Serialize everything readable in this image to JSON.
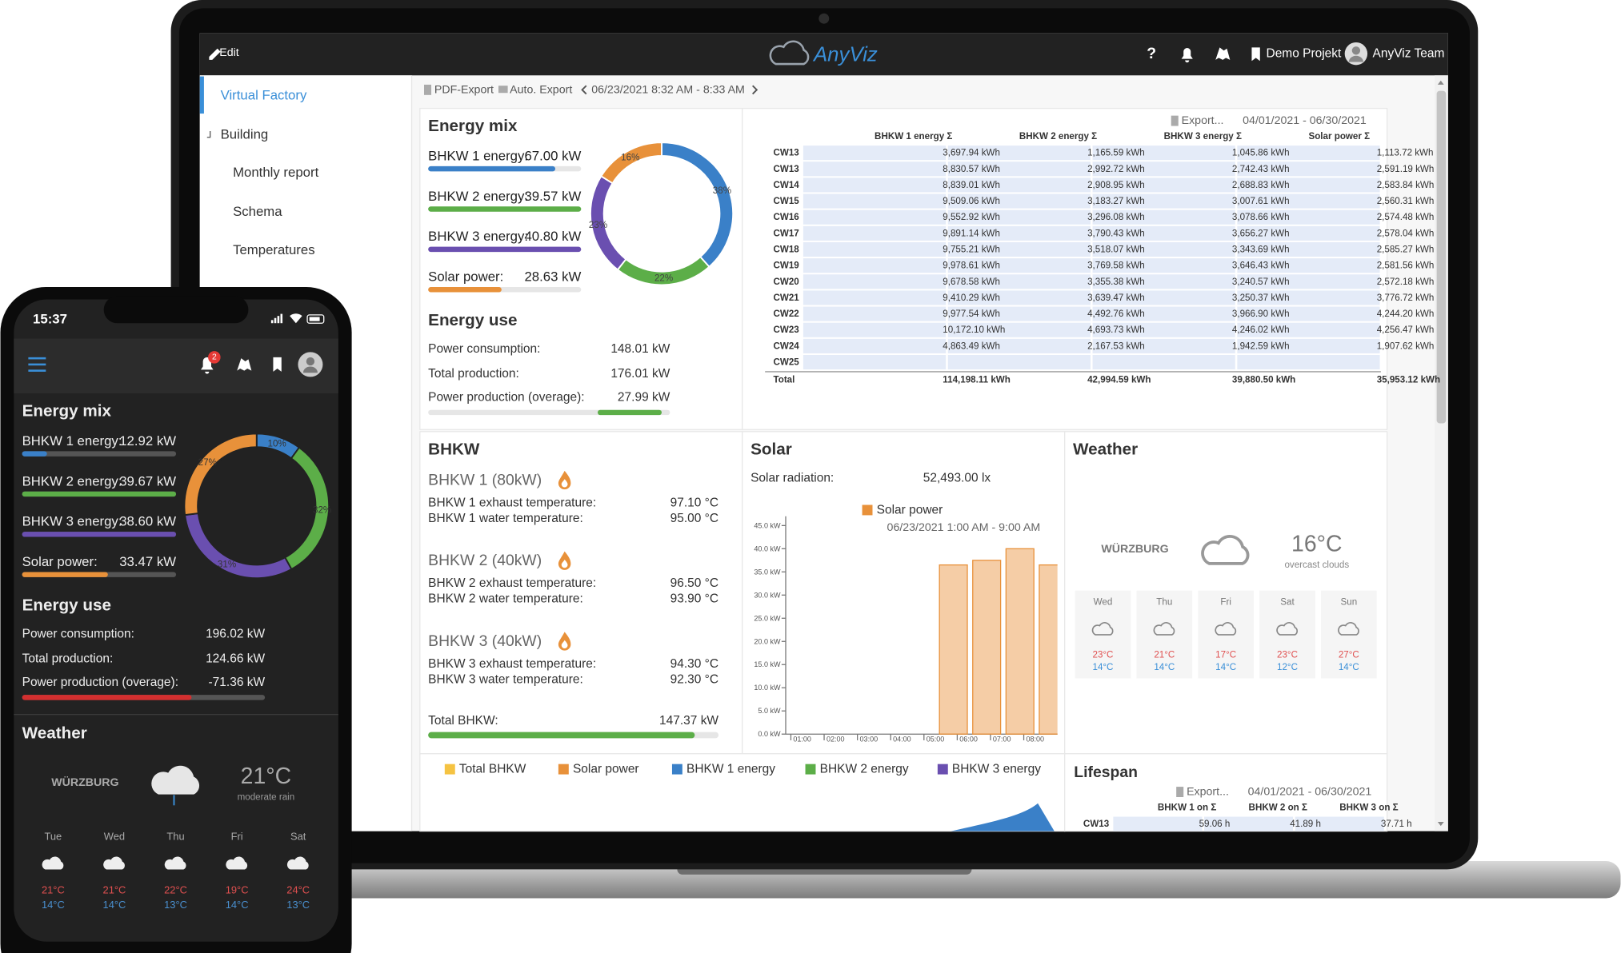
{
  "laptop": {
    "header": {
      "edit": "Edit",
      "logo": "AnyViz",
      "help": "?",
      "project": "Demo Projekt",
      "user": "AnyViz Team"
    },
    "sidebar": [
      "Virtual Factory",
      "Building",
      "Monthly report",
      "Schema",
      "Temperatures"
    ],
    "toolbar": {
      "pdf_export": "PDF-Export",
      "auto_export": "Auto. Export",
      "range": "06/23/2021 8:32 AM - 8:33 AM"
    },
    "energy_mix": {
      "title": "Energy mix",
      "items": [
        {
          "label": "BHKW 1 energy:",
          "value": "67.00 kW"
        },
        {
          "label": "BHKW 2 energy:",
          "value": "39.57 kW"
        },
        {
          "label": "BHKW 3 energy:",
          "value": "40.80 kW"
        },
        {
          "label": "Solar power:",
          "value": "28.63 kW"
        }
      ],
      "donut": {
        "type": "pie",
        "values": [
          38,
          22,
          23,
          16
        ],
        "value_labels": [
          "38%",
          "22%",
          "23%",
          "16%"
        ],
        "colors": [
          "#3a80c8",
          "#5cae48",
          "#6a4fb0",
          "#e8913a"
        ]
      }
    },
    "energy_use": {
      "title": "Energy use",
      "rows": [
        {
          "label": "Power consumption:",
          "value": "148.01 kW"
        },
        {
          "label": "Total production:",
          "value": "176.01 kW"
        },
        {
          "label": "Power production (overage):",
          "value": "27.99 kW"
        }
      ]
    },
    "table": {
      "export": "Export...",
      "range": "04/01/2021 - 06/30/2021",
      "columns": [
        "BHKW 1 energy Σ",
        "BHKW 2 energy Σ",
        "BHKW 3 energy Σ",
        "Solar power Σ"
      ],
      "rows": [
        {
          "label": "CW13",
          "cells": [
            "3,697.94 kWh",
            "1,165.59 kWh",
            "1,045.86 kWh",
            "1,113.72 kWh"
          ]
        },
        {
          "label": "CW13",
          "cells": [
            "8,830.57 kWh",
            "2,992.72 kWh",
            "2,742.43 kWh",
            "2,591.19 kWh"
          ]
        },
        {
          "label": "CW14",
          "cells": [
            "8,839.01 kWh",
            "2,908.95 kWh",
            "2,688.83 kWh",
            "2,583.84 kWh"
          ]
        },
        {
          "label": "CW15",
          "cells": [
            "9,509.06 kWh",
            "3,183.27 kWh",
            "3,007.61 kWh",
            "2,560.31 kWh"
          ]
        },
        {
          "label": "CW16",
          "cells": [
            "9,552.92 kWh",
            "3,296.08 kWh",
            "3,078.66 kWh",
            "2,574.48 kWh"
          ]
        },
        {
          "label": "CW17",
          "cells": [
            "9,891.14 kWh",
            "3,790.43 kWh",
            "3,656.27 kWh",
            "2,578.04 kWh"
          ]
        },
        {
          "label": "CW18",
          "cells": [
            "9,755.21 kWh",
            "3,518.07 kWh",
            "3,343.69 kWh",
            "2,585.27 kWh"
          ]
        },
        {
          "label": "CW19",
          "cells": [
            "9,978.61 kWh",
            "3,769.58 kWh",
            "3,646.43 kWh",
            "2,581.56 kWh"
          ]
        },
        {
          "label": "CW20",
          "cells": [
            "9,678.58 kWh",
            "3,355.38 kWh",
            "3,240.57 kWh",
            "2,572.18 kWh"
          ]
        },
        {
          "label": "CW21",
          "cells": [
            "9,410.29 kWh",
            "3,639.47 kWh",
            "3,250.37 kWh",
            "3,776.72 kWh"
          ]
        },
        {
          "label": "CW22",
          "cells": [
            "9,977.54 kWh",
            "4,492.76 kWh",
            "3,966.90 kWh",
            "4,244.20 kWh"
          ]
        },
        {
          "label": "CW23",
          "cells": [
            "10,172.10 kWh",
            "4,693.73 kWh",
            "4,246.02 kWh",
            "4,256.47 kWh"
          ]
        },
        {
          "label": "CW24",
          "cells": [
            "4,863.49 kWh",
            "2,167.53 kWh",
            "1,942.59 kWh",
            "1,907.62 kWh"
          ]
        },
        {
          "label": "CW25",
          "cells": []
        }
      ],
      "total": {
        "label": "Total",
        "cells": [
          "114,198.11 kWh",
          "42,994.59 kWh",
          "39,880.50 kWh",
          "35,953.12 kWh"
        ]
      }
    },
    "bhkw": {
      "title": "BHKW",
      "units": [
        {
          "name": "BHKW 1 (80kW)",
          "rows": [
            {
              "label": "BHKW 1 exhaust temperature:",
              "value": "97.10 °C"
            },
            {
              "label": "BHKW 1 water temperature:",
              "value": "95.00 °C"
            }
          ]
        },
        {
          "name": "BHKW 2 (40kW)",
          "rows": [
            {
              "label": "BHKW 2 exhaust temperature:",
              "value": "96.50 °C"
            },
            {
              "label": "BHKW 2 water temperature:",
              "value": "93.90 °C"
            }
          ]
        },
        {
          "name": "BHKW 3 (40kW)",
          "rows": [
            {
              "label": "BHKW 3 exhaust temperature:",
              "value": "94.30 °C"
            },
            {
              "label": "BHKW 3 water temperature:",
              "value": "92.30 °C"
            }
          ]
        }
      ],
      "total": {
        "label": "Total BHKW:",
        "value": "147.37 kW"
      }
    },
    "solar": {
      "title": "Solar",
      "radiation": {
        "label": "Solar radiation:",
        "value": "52,493.00 lx"
      },
      "chart": {
        "type": "bar",
        "subtitle": "06/23/2021 1:00 AM - 9:00 AM",
        "categories": [
          "01:00",
          "02:00",
          "03:00",
          "04:00",
          "05:00",
          "06:00",
          "07:00",
          "08:00"
        ],
        "series": [
          {
            "name": "Solar power",
            "color": "#e8913a",
            "values": [
              null,
              null,
              null,
              null,
              36.5,
              37.5,
              40,
              36.5
            ]
          }
        ],
        "ylim": [
          0,
          45
        ],
        "yticks": [
          {
            "value": 0,
            "label": "0.0 kW"
          },
          {
            "value": 5,
            "label": "5.0 kW"
          },
          {
            "value": 10,
            "label": "10.0 kW"
          },
          {
            "value": 15,
            "label": "15.0 kW"
          },
          {
            "value": 20,
            "label": "20.0 kW"
          },
          {
            "value": 25,
            "label": "25.0 kW"
          },
          {
            "value": 30,
            "label": "30.0 kW"
          },
          {
            "value": 35,
            "label": "35.0 kW"
          },
          {
            "value": 40,
            "label": "40.0 kW"
          },
          {
            "value": 45,
            "label": "45.0 kW"
          }
        ]
      }
    },
    "weather": {
      "title": "Weather",
      "city": "WÜRZBURG",
      "temp": "16°C",
      "desc": "overcast clouds",
      "days": [
        {
          "day": "Wed",
          "high": "23°C",
          "low": "14°C"
        },
        {
          "day": "Thu",
          "high": "21°C",
          "low": "14°C"
        },
        {
          "day": "Fri",
          "high": "17°C",
          "low": "14°C"
        },
        {
          "day": "Sat",
          "high": "23°C",
          "low": "12°C"
        },
        {
          "day": "Sun",
          "high": "27°C",
          "low": "14°C"
        }
      ]
    },
    "legend": [
      {
        "name": "Total BHKW",
        "color": "#f5c342"
      },
      {
        "name": "Solar power",
        "color": "#e8913a"
      },
      {
        "name": "BHKW 1 energy",
        "color": "#3a80c8"
      },
      {
        "name": "BHKW 2 energy",
        "color": "#5cae48"
      },
      {
        "name": "BHKW 3 energy",
        "color": "#6a4fb0"
      }
    ],
    "lifespan": {
      "title": "Lifespan",
      "export": "Export...",
      "range": "04/01/2021 - 06/30/2021",
      "columns": [
        "BHKW 1 on Σ",
        "BHKW 2 on Σ",
        "BHKW 3 on Σ"
      ],
      "rows": [
        {
          "label": "CW13",
          "cells": [
            "59.06 h",
            "41.89 h",
            "37.71 h"
          ]
        }
      ]
    }
  },
  "phone": {
    "time": "15:37",
    "badge": "2",
    "energy_mix": {
      "title": "Energy mix",
      "items": [
        {
          "label": "BHKW 1 energy:",
          "value": "12.92 kW"
        },
        {
          "label": "BHKW 2 energy:",
          "value": "39.67 kW"
        },
        {
          "label": "BHKW 3 energy:",
          "value": "38.60 kW"
        },
        {
          "label": "Solar power:",
          "value": "33.47 kW"
        }
      ],
      "donut": {
        "type": "pie",
        "values": [
          10,
          32,
          31,
          27
        ],
        "value_labels": [
          "10%",
          "32%",
          "31%",
          "27%"
        ],
        "colors": [
          "#3a80c8",
          "#5cae48",
          "#6a4fb0",
          "#e8913a"
        ]
      }
    },
    "energy_use": {
      "title": "Energy use",
      "rows": [
        {
          "label": "Power consumption:",
          "value": "196.02 kW"
        },
        {
          "label": "Total production:",
          "value": "124.66 kW"
        },
        {
          "label": "Power production (overage):",
          "value": "-71.36 kW"
        }
      ]
    },
    "weather": {
      "title": "Weather",
      "city": "WÜRZBURG",
      "temp": "21°C",
      "desc": "moderate rain",
      "days": [
        {
          "day": "Tue",
          "high": "21°C",
          "low": "14°C"
        },
        {
          "day": "Wed",
          "high": "21°C",
          "low": "14°C"
        },
        {
          "day": "Thu",
          "high": "22°C",
          "low": "13°C"
        },
        {
          "day": "Fri",
          "high": "19°C",
          "low": "14°C"
        },
        {
          "day": "Sat",
          "high": "24°C",
          "low": "13°C"
        }
      ]
    }
  }
}
